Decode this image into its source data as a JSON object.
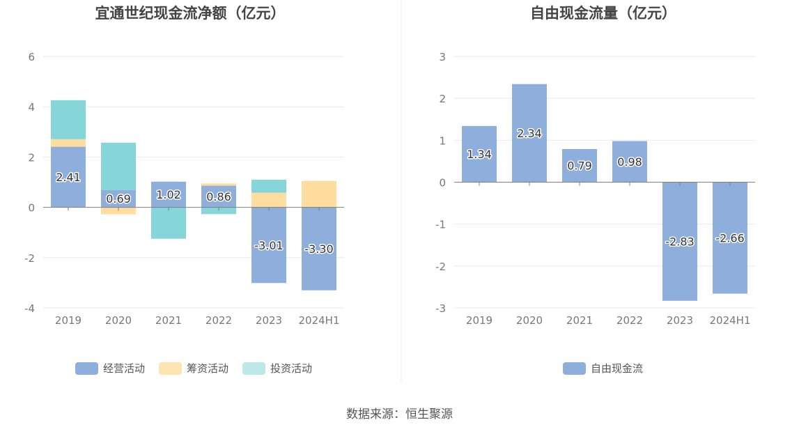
{
  "colors": {
    "operating": "#8eaedc",
    "financing": "#fedd9e",
    "investing": "#86d5d9",
    "fcf": "#8eaedc",
    "grid": "#e6e8f0",
    "axis_text": "#777777",
    "zero_line": "#7f7f7f",
    "title": "#444444"
  },
  "chart_data": [
    {
      "id": "net-cash",
      "type": "bar",
      "stacked": true,
      "title": "宜通世纪现金流净额（亿元）",
      "categories": [
        "2019",
        "2020",
        "2021",
        "2022",
        "2023",
        "2024H1"
      ],
      "ylim": [
        -4,
        6
      ],
      "yticks": [
        6,
        4,
        2,
        0,
        -2,
        -4
      ],
      "legend_position": "bottom",
      "series": [
        {
          "key": "operating",
          "name": "经营活动",
          "values": [
            2.41,
            0.69,
            1.02,
            0.86,
            -3.01,
            -3.3
          ],
          "labels": [
            "2.41",
            "0.69",
            "1.02",
            "0.86",
            "-3.01",
            "-3.30"
          ]
        },
        {
          "key": "financing",
          "name": "筹资活动",
          "values": [
            0.3,
            -0.28,
            0.0,
            0.09,
            0.58,
            1.05
          ]
        },
        {
          "key": "investing",
          "name": "投资活动",
          "values": [
            1.55,
            1.88,
            -1.25,
            -0.27,
            0.52,
            0.0
          ]
        }
      ]
    },
    {
      "id": "fcf",
      "type": "bar",
      "title": "自由现金流量（亿元）",
      "categories": [
        "2019",
        "2020",
        "2021",
        "2022",
        "2023",
        "2024H1"
      ],
      "ylim": [
        -3,
        3
      ],
      "yticks": [
        3,
        2,
        1,
        0,
        -1,
        -2,
        -3
      ],
      "legend_position": "bottom",
      "series": [
        {
          "key": "fcf",
          "name": "自由现金流",
          "values": [
            1.34,
            2.34,
            0.79,
            0.98,
            -2.83,
            -2.66
          ],
          "labels": [
            "1.34",
            "2.34",
            "0.79",
            "0.98",
            "-2.83",
            "-2.66"
          ]
        }
      ]
    }
  ],
  "source_text": "数据来源：恒生聚源"
}
